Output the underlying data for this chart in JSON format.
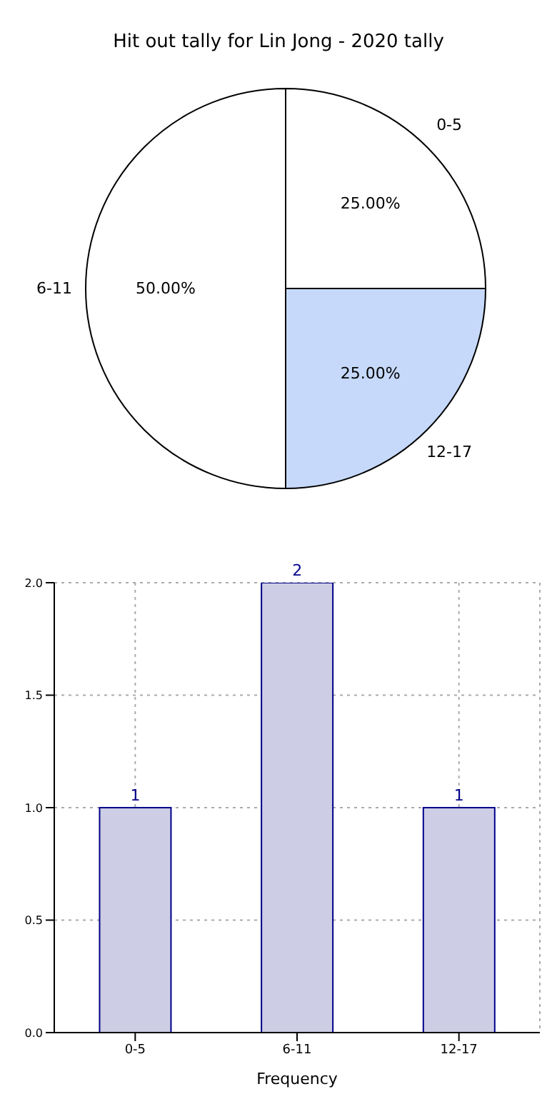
{
  "chart_data": [
    {
      "type": "pie",
      "title": "Hit out tally for Lin Jong - 2020 tally",
      "categories": [
        "0-5",
        "6-11",
        "12-17"
      ],
      "values": [
        25,
        50,
        25
      ],
      "colors": [
        "#ffffff",
        "#ffffff",
        "#c6d9fa"
      ],
      "value_labels": [
        "25.00%",
        "50.00%",
        "25.00%"
      ]
    },
    {
      "type": "bar",
      "categories": [
        "0-5",
        "6-11",
        "12-17"
      ],
      "values": [
        1,
        2,
        1
      ],
      "color": "#cdcde5",
      "xlabel": "Frequency",
      "ylim": [
        0,
        2
      ],
      "yticks": [
        {
          "value": 0,
          "label": "0.0"
        },
        {
          "value": 0.5,
          "label": "0.5"
        },
        {
          "value": 1,
          "label": "1.0"
        },
        {
          "value": 1.5,
          "label": "1.5"
        },
        {
          "value": 2,
          "label": "2.0"
        }
      ],
      "grid": true,
      "data_labels": true
    }
  ]
}
